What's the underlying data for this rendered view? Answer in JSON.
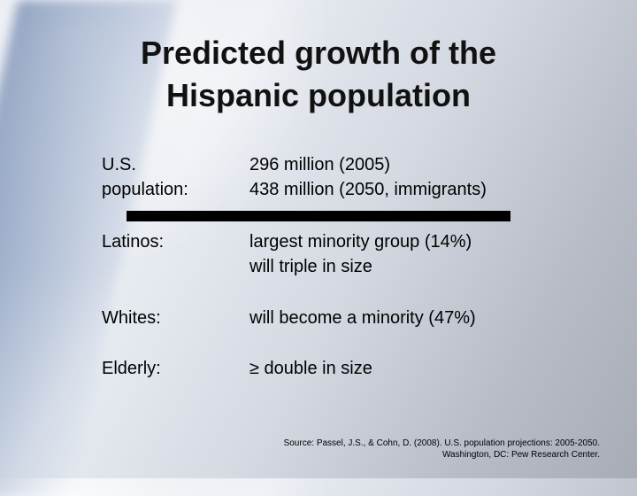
{
  "title": {
    "line1": "Predicted growth of the",
    "line2": "Hispanic population"
  },
  "rows": [
    {
      "label_lines": [
        "U.S.",
        "population:"
      ],
      "value_lines": [
        "296 million (2005)",
        "438 million (2050, immigrants)"
      ]
    },
    {
      "label_lines": [
        "Latinos:"
      ],
      "value_lines": [
        "largest minority group (14%)",
        "will triple in size"
      ]
    },
    {
      "label_lines": [
        "Whites:"
      ],
      "value_lines": [
        "will become a minority (47%)"
      ]
    },
    {
      "label_lines": [
        "Elderly:"
      ],
      "value_lines": [
        "≥ double in size"
      ]
    }
  ],
  "source": {
    "line1": "Source: Passel, J.S., & Cohn, D. (2008). U.S. population projections: 2005-2050.",
    "line2": "Washington, DC: Pew Research Center."
  }
}
